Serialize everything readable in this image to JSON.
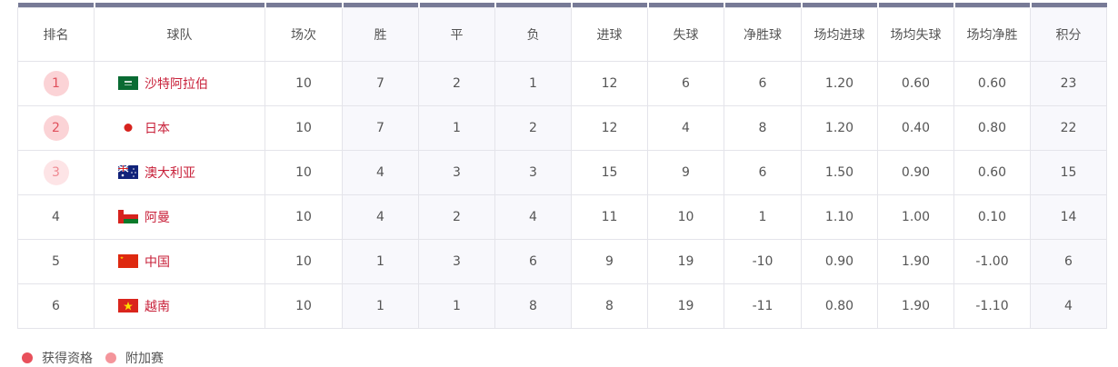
{
  "headers": [
    "排名",
    "球队",
    "场次",
    "胜",
    "平",
    "负",
    "进球",
    "失球",
    "净胜球",
    "场均进球",
    "场均失球",
    "场均净胜",
    "积分"
  ],
  "rows": [
    {
      "rank": "1",
      "status": "qualified",
      "team": "沙特阿拉伯",
      "flag": "saudi-arabia-flag",
      "cells": [
        "10",
        "7",
        "2",
        "1",
        "12",
        "6",
        "6",
        "1.20",
        "0.60",
        "0.60",
        "23"
      ]
    },
    {
      "rank": "2",
      "status": "qualified",
      "team": "日本",
      "flag": "japan-flag",
      "cells": [
        "10",
        "7",
        "1",
        "2",
        "12",
        "4",
        "8",
        "1.20",
        "0.40",
        "0.80",
        "22"
      ]
    },
    {
      "rank": "3",
      "status": "playoff",
      "team": "澳大利亚",
      "flag": "australia-flag",
      "cells": [
        "10",
        "4",
        "3",
        "3",
        "15",
        "9",
        "6",
        "1.50",
        "0.90",
        "0.60",
        "15"
      ]
    },
    {
      "rank": "4",
      "status": "",
      "team": "阿曼",
      "flag": "oman-flag",
      "cells": [
        "10",
        "4",
        "2",
        "4",
        "11",
        "10",
        "1",
        "1.10",
        "1.00",
        "0.10",
        "14"
      ]
    },
    {
      "rank": "5",
      "status": "",
      "team": "中国",
      "flag": "china-flag",
      "cells": [
        "10",
        "1",
        "3",
        "6",
        "9",
        "19",
        "-10",
        "0.90",
        "1.90",
        "-1.00",
        "6"
      ]
    },
    {
      "rank": "6",
      "status": "",
      "team": "越南",
      "flag": "vietnam-flag",
      "cells": [
        "10",
        "1",
        "1",
        "8",
        "8",
        "19",
        "-11",
        "0.80",
        "1.90",
        "-1.10",
        "4"
      ]
    }
  ],
  "legend": [
    {
      "label": "获得资格",
      "color": "#e8505b"
    },
    {
      "label": "附加赛",
      "color": "#f4959b"
    }
  ],
  "colors": {
    "header_bar": "#777a96",
    "team_text": "#c8213a"
  }
}
